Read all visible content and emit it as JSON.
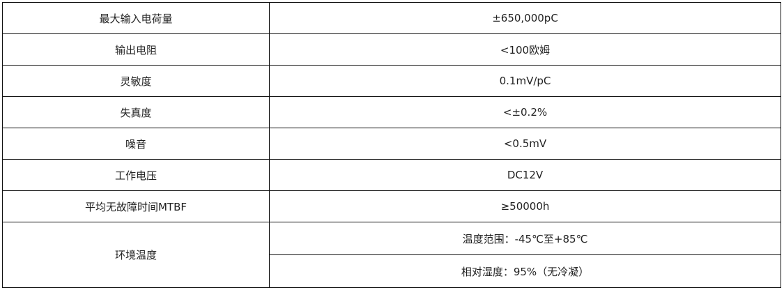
{
  "rows": [
    {
      "label": "最大输入电荷量",
      "value": "±650,000pC"
    },
    {
      "label": "输出电阻",
      "value": "<100欧姆"
    },
    {
      "label": "灵敏度",
      "value": "0.1mV/pC"
    },
    {
      "label": "失真度",
      "value": "<±0.2%"
    },
    {
      "label": "噪音",
      "value": "<0.5mV"
    },
    {
      "label": "工作电压",
      "value": "DC12V"
    },
    {
      "label": "平均无故障时间MTBF",
      "value": "≥50000h"
    }
  ],
  "environment": {
    "label": "环境温度",
    "values": [
      "温度范围：-45℃至+85℃",
      "相对湿度：95%（无冷凝）"
    ]
  }
}
